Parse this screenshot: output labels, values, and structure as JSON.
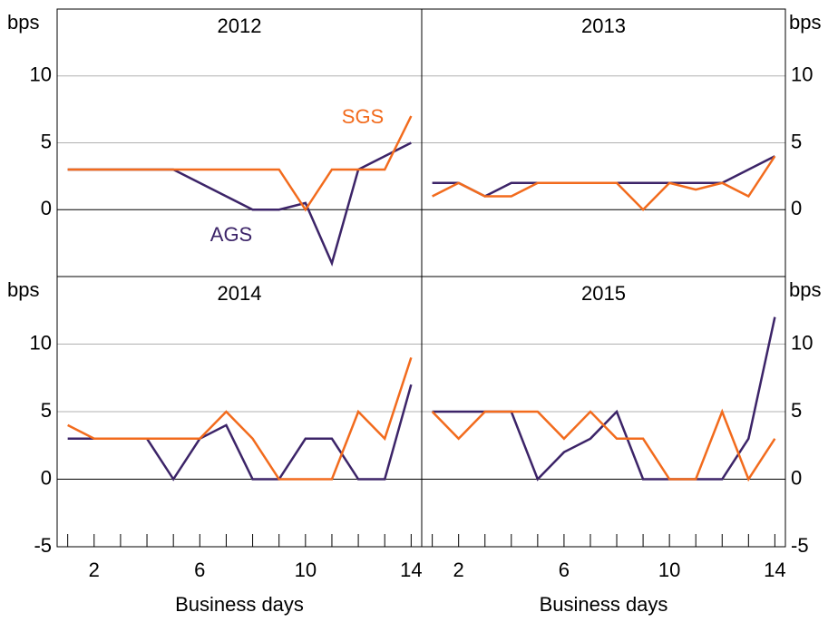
{
  "chart_data": [
    {
      "type": "line",
      "title": "2012",
      "y_label": "bps",
      "y_axis_side": "left",
      "x": [
        1,
        2,
        3,
        4,
        5,
        6,
        7,
        8,
        9,
        10,
        11,
        12,
        13,
        14
      ],
      "xlim": [
        0.6,
        14.4
      ],
      "ylim": [
        -5,
        15
      ],
      "yticks": [
        0,
        5,
        10
      ],
      "grid": true,
      "series": [
        {
          "name": "AGS",
          "color": "#3c2468",
          "values": [
            3,
            3,
            3,
            3,
            3,
            2,
            1,
            0,
            0,
            0.5,
            -4,
            3,
            4,
            5
          ]
        },
        {
          "name": "SGS",
          "color": "#f26b1d",
          "values": [
            3,
            3,
            3,
            3,
            3,
            3,
            3,
            3,
            3,
            0,
            3,
            3,
            3,
            7
          ]
        }
      ]
    },
    {
      "type": "line",
      "title": "2013",
      "y_label": "bps",
      "y_axis_side": "right",
      "x": [
        1,
        2,
        3,
        4,
        5,
        6,
        7,
        8,
        9,
        10,
        11,
        12,
        13,
        14
      ],
      "xlim": [
        0.6,
        14.4
      ],
      "ylim": [
        -5,
        15
      ],
      "yticks": [
        0,
        5,
        10
      ],
      "grid": true,
      "series": [
        {
          "color": "#3c2468",
          "values": [
            2,
            2,
            1,
            2,
            2,
            2,
            2,
            2,
            2,
            2,
            2,
            2,
            3,
            4
          ]
        },
        {
          "color": "#f26b1d",
          "values": [
            1,
            2,
            1,
            1,
            2,
            2,
            2,
            2,
            0,
            2,
            1.5,
            2,
            1,
            4
          ]
        }
      ]
    },
    {
      "type": "line",
      "title": "2014",
      "y_label": "bps",
      "y_axis_side": "left",
      "x_label": "Business days",
      "x": [
        1,
        2,
        3,
        4,
        5,
        6,
        7,
        8,
        9,
        10,
        11,
        12,
        13,
        14
      ],
      "xlim": [
        0.6,
        14.4
      ],
      "xticks": [
        2,
        6,
        10,
        14
      ],
      "minor_xticks": [
        1,
        2,
        3,
        4,
        5,
        6,
        7,
        8,
        9,
        10,
        11,
        12,
        13,
        14
      ],
      "ylim": [
        -5,
        15
      ],
      "yticks": [
        -5,
        0,
        5,
        10
      ],
      "grid": true,
      "series": [
        {
          "color": "#3c2468",
          "values": [
            3,
            3,
            3,
            3,
            0,
            3,
            4,
            0,
            0,
            3,
            3,
            0,
            0,
            7
          ]
        },
        {
          "color": "#f26b1d",
          "values": [
            4,
            3,
            3,
            3,
            3,
            3,
            5,
            3,
            0,
            0,
            0,
            5,
            3,
            9
          ]
        }
      ]
    },
    {
      "type": "line",
      "title": "2015",
      "y_label": "bps",
      "y_axis_side": "right",
      "x_label": "Business days",
      "x": [
        1,
        2,
        3,
        4,
        5,
        6,
        7,
        8,
        9,
        10,
        11,
        12,
        13,
        14
      ],
      "xlim": [
        0.6,
        14.4
      ],
      "xticks": [
        2,
        6,
        10,
        14
      ],
      "minor_xticks": [
        1,
        2,
        3,
        4,
        5,
        6,
        7,
        8,
        9,
        10,
        11,
        12,
        13,
        14
      ],
      "ylim": [
        -5,
        15
      ],
      "yticks": [
        -5,
        0,
        5,
        10
      ],
      "grid": true,
      "series": [
        {
          "color": "#3c2468",
          "values": [
            5,
            5,
            5,
            5,
            0,
            2,
            3,
            5,
            0,
            0,
            0,
            0,
            3,
            12
          ]
        },
        {
          "color": "#f26b1d",
          "values": [
            5,
            3,
            5,
            5,
            5,
            3,
            5,
            3,
            3,
            0,
            0,
            5,
            0,
            3
          ]
        }
      ]
    }
  ]
}
